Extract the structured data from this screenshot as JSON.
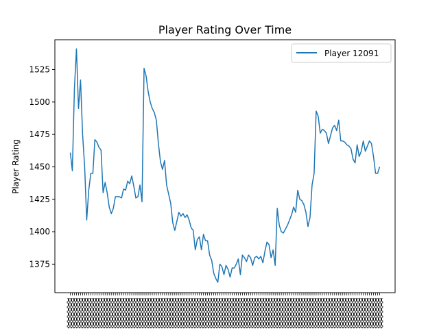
{
  "chart_data": {
    "type": "line",
    "title": "Player Rating Over Time",
    "xlabel": "",
    "ylabel": "Player Rating",
    "ylim": [
      1353,
      1548
    ],
    "yticks": [
      1375,
      1400,
      1425,
      1450,
      1475,
      1500,
      1525
    ],
    "grid": false,
    "legend_position": "top-right",
    "series": [
      {
        "name": "Player 12091",
        "color": "#1f77b4",
        "values": [
          1461,
          1447,
          1510,
          1541,
          1495,
          1517,
          1475,
          1450,
          1409,
          1432,
          1445,
          1445,
          1471,
          1469,
          1465,
          1463,
          1430,
          1438,
          1430,
          1419,
          1414,
          1418,
          1427,
          1427,
          1427,
          1426,
          1433,
          1432,
          1439,
          1437,
          1443,
          1435,
          1426,
          1427,
          1436,
          1423,
          1526,
          1520,
          1508,
          1500,
          1495,
          1492,
          1486,
          1468,
          1454,
          1448,
          1455,
          1436,
          1429,
          1422,
          1407,
          1401,
          1408,
          1415,
          1412,
          1414,
          1411,
          1413,
          1409,
          1403,
          1401,
          1386,
          1394,
          1396,
          1386,
          1398,
          1393,
          1393,
          1382,
          1378,
          1368,
          1364,
          1361,
          1375,
          1373,
          1367,
          1374,
          1371,
          1365,
          1372,
          1372,
          1375,
          1379,
          1367,
          1382,
          1380,
          1377,
          1382,
          1380,
          1374,
          1380,
          1381,
          1379,
          1381,
          1376,
          1385,
          1392,
          1390,
          1380,
          1386,
          1374,
          1418,
          1405,
          1400,
          1399,
          1402,
          1405,
          1409,
          1413,
          1419,
          1415,
          1432,
          1425,
          1424,
          1421,
          1415,
          1404,
          1411,
          1436,
          1445,
          1493,
          1489,
          1476,
          1479,
          1478,
          1476,
          1468,
          1474,
          1480,
          1482,
          1478,
          1486,
          1470,
          1470,
          1469,
          1467,
          1466,
          1464,
          1456,
          1453,
          1467,
          1458,
          1462,
          1470,
          1462,
          1466,
          1470,
          1468,
          1458,
          1445,
          1445,
          1450
        ]
      }
    ]
  }
}
